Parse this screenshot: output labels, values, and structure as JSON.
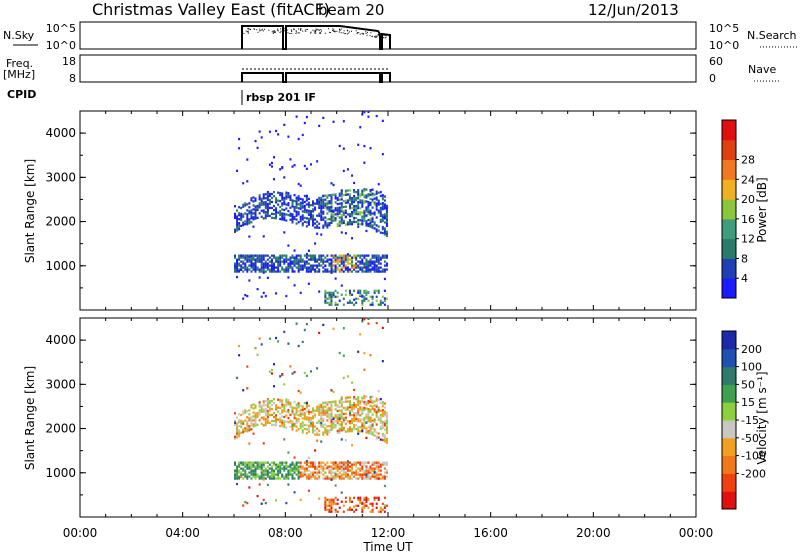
{
  "header": {
    "title": "Christmas Valley East (fitACF)",
    "beam": "beam 20",
    "date": "12/Jun/2013"
  },
  "panels": {
    "nsky_label": "N.Sky",
    "nsearch_label": "N.Search",
    "freq_label_line1": "Freq.",
    "freq_label_line2": "[MHz]",
    "nave_label": "Nave",
    "cpid_label": "CPID",
    "cpid_value": "rbsp 201 IF",
    "nsky_ticks": [
      "10^5",
      "10^0"
    ],
    "nsearch_ticks": [
      "10^5",
      "10^0"
    ],
    "freq_ticks": [
      "18",
      "8"
    ],
    "nave_ticks": [
      "60",
      "0"
    ]
  },
  "axes": {
    "xlabel": "Time UT",
    "ylabel": "Slant Range [km]",
    "x_ticks": [
      "00:00",
      "04:00",
      "08:00",
      "12:00",
      "16:00",
      "20:00",
      "00:00"
    ],
    "y_ticks": [
      "1000",
      "2000",
      "3000",
      "4000"
    ]
  },
  "colorbars": {
    "power": {
      "label": "Power [dB]",
      "ticks": [
        "4",
        "8",
        "12",
        "16",
        "20",
        "24",
        "28"
      ],
      "colors": [
        "#1a1aff",
        "#1f3fb4",
        "#2a7a6a",
        "#3f9c7c",
        "#8cc63f",
        "#f0b020",
        "#f07820",
        "#e04010",
        "#e01010"
      ]
    },
    "velocity": {
      "label": "Velocity [m s⁻¹]",
      "ticks": [
        "200",
        "100",
        "50",
        "15",
        "-15",
        "-50",
        "-100",
        "-200"
      ],
      "colors": [
        "#1a2aa8",
        "#2050b0",
        "#2f7a6a",
        "#3fa050",
        "#8cd040",
        "#c8c8c0",
        "#f0a020",
        "#f07818",
        "#f04010",
        "#e01010"
      ]
    }
  },
  "chart_data": [
    {
      "type": "heatmap",
      "title": "Power",
      "xlabel": "Time UT",
      "ylabel": "Slant Range [km]",
      "xlim": [
        0,
        24
      ],
      "ylim": [
        0,
        4500
      ],
      "colorbar_label": "Power [dB]",
      "data_extent_hours": [
        6.0,
        12.0
      ],
      "features": [
        {
          "t_start": 6.0,
          "t_end": 12.0,
          "range_start": 1800,
          "range_end": 2700,
          "power_db": "4-16"
        },
        {
          "t_start": 6.0,
          "t_end": 12.0,
          "range_start": 800,
          "range_end": 1300,
          "power_db": "4-24"
        },
        {
          "t_start": 6.0,
          "t_end": 12.0,
          "range_start": 0,
          "range_end": 4500,
          "power_db": "4 (scatter)"
        }
      ]
    },
    {
      "type": "heatmap",
      "title": "Velocity",
      "xlabel": "Time UT",
      "ylabel": "Slant Range [km]",
      "xlim": [
        0,
        24
      ],
      "ylim": [
        0,
        4500
      ],
      "colorbar_label": "Velocity [m s⁻¹]",
      "data_extent_hours": [
        6.0,
        12.0
      ],
      "features": [
        {
          "t_start": 6.0,
          "t_end": 12.0,
          "range_start": 1800,
          "range_end": 2700,
          "velocity": "-15 to 15"
        },
        {
          "t_start": 6.0,
          "t_end": 12.0,
          "range_start": 800,
          "range_end": 1300,
          "velocity": "-100 to 50"
        },
        {
          "t_start": 6.0,
          "t_end": 12.0,
          "range_start": 0,
          "range_end": 4500,
          "velocity": "mixed (scatter)"
        }
      ]
    }
  ]
}
